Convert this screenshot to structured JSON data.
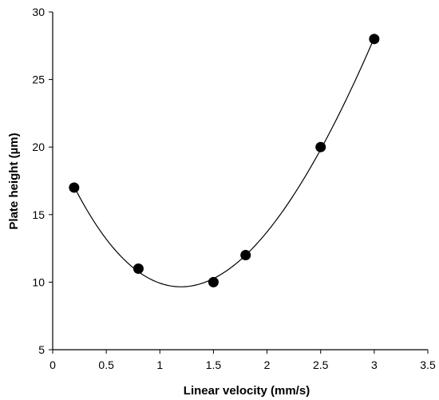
{
  "chart_data": {
    "type": "scatter",
    "title": "",
    "xlabel": "Linear velocity (mm/s)",
    "ylabel": "Plate height (µm)",
    "xlim": [
      0,
      3.5
    ],
    "ylim": [
      5,
      30
    ],
    "xticks": [
      0,
      0.5,
      1,
      1.5,
      2,
      2.5,
      3,
      3.5
    ],
    "xtick_labels": [
      "0",
      "0.5",
      "1",
      "1.5",
      "2",
      "2.5",
      "3",
      "3.5"
    ],
    "yticks": [
      5,
      10,
      15,
      20,
      25,
      30
    ],
    "ytick_labels": [
      "5",
      "10",
      "15",
      "20",
      "25",
      "30"
    ],
    "grid": false,
    "legend": "none",
    "points": [
      {
        "x": 0.2,
        "y": 17
      },
      {
        "x": 0.8,
        "y": 11
      },
      {
        "x": 1.5,
        "y": 10
      },
      {
        "x": 1.8,
        "y": 12
      },
      {
        "x": 2.5,
        "y": 20
      },
      {
        "x": 3.0,
        "y": 28
      }
    ],
    "trendline": {
      "type": "polynomial",
      "x_range": [
        0.2,
        3.0
      ]
    },
    "colors": {
      "marker": "#000000",
      "line": "#000000",
      "axis": "#000000"
    }
  }
}
